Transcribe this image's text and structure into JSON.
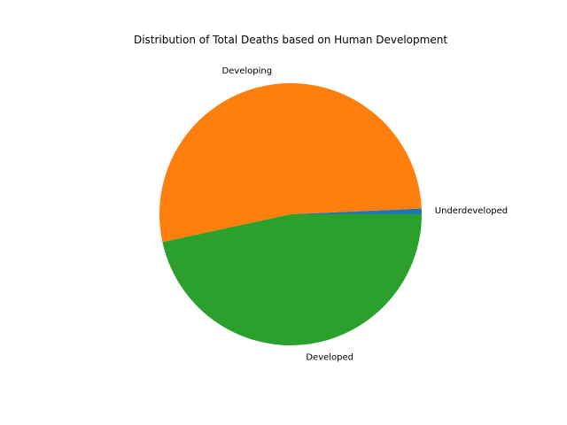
{
  "chart_data": {
    "type": "pie",
    "title": "Distribution of Total Deaths based on Human Development",
    "labels": [
      "Underdeveloped",
      "Developing",
      "Developed"
    ],
    "values": [
      0.7,
      52.7,
      46.6
    ],
    "colors": [
      "#1f77b4",
      "#ff7f0e",
      "#2ca02c"
    ],
    "start_angle": 0,
    "direction": "counterclockwise",
    "legend": "none"
  }
}
